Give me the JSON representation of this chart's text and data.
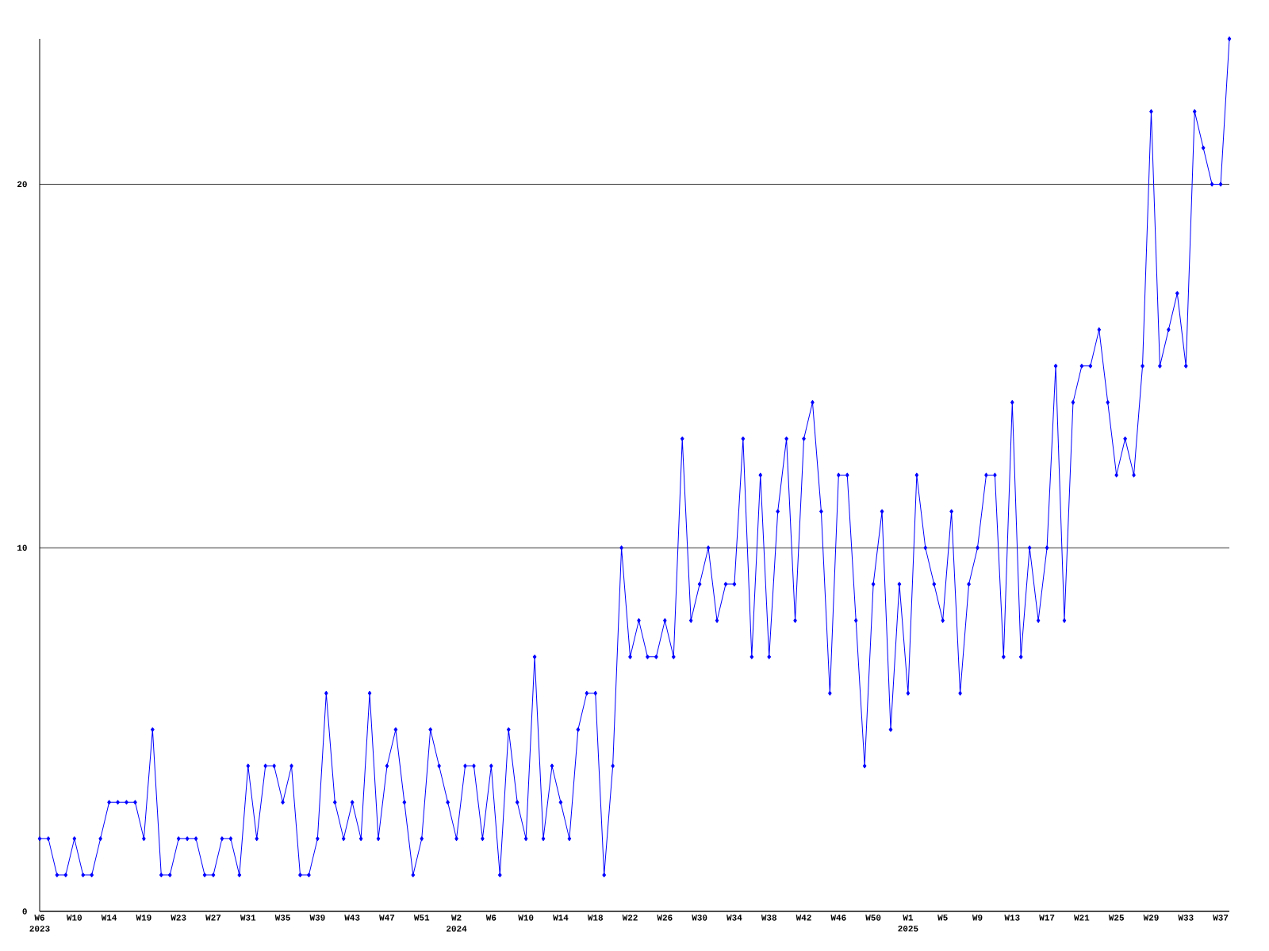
{
  "chart_data": {
    "type": "line",
    "categories": [
      "W6 2023",
      null,
      null,
      null,
      "W10",
      null,
      null,
      null,
      "W14",
      null,
      null,
      null,
      "W19",
      null,
      null,
      null,
      "W23",
      null,
      null,
      null,
      "W27",
      null,
      null,
      null,
      "W31",
      null,
      null,
      null,
      "W35",
      null,
      null,
      null,
      "W39",
      null,
      null,
      null,
      "W43",
      null,
      null,
      null,
      "W47",
      null,
      null,
      null,
      "W51",
      null,
      null,
      null,
      "W2 2024",
      null,
      null,
      null,
      "W6",
      null,
      null,
      null,
      "W10",
      null,
      null,
      null,
      "W14",
      null,
      null,
      null,
      "W18",
      null,
      null,
      null,
      "W22",
      null,
      null,
      null,
      "W26",
      null,
      null,
      null,
      "W30",
      null,
      null,
      null,
      "W34",
      null,
      null,
      null,
      "W38",
      null,
      null,
      null,
      "W42",
      null,
      null,
      null,
      "W46",
      null,
      null,
      null,
      "W50",
      null,
      null,
      null,
      "W1 2025",
      null,
      null,
      null,
      "W5",
      null,
      null,
      null,
      "W9",
      null,
      null,
      null,
      "W13",
      null,
      null,
      null,
      "W17",
      null,
      null,
      null,
      "W21",
      null,
      null,
      null,
      "W25",
      null,
      null,
      null,
      "W29",
      null,
      null,
      null,
      "W33",
      null,
      null,
      null,
      "W37",
      null
    ],
    "values": [
      2,
      2,
      1,
      1,
      2,
      1,
      1,
      2,
      3,
      3,
      3,
      3,
      2,
      5,
      1,
      1,
      2,
      2,
      2,
      1,
      1,
      2,
      2,
      1,
      4,
      2,
      4,
      4,
      3,
      4,
      1,
      1,
      2,
      6,
      3,
      2,
      3,
      2,
      6,
      2,
      4,
      5,
      3,
      1,
      2,
      5,
      4,
      3,
      2,
      4,
      4,
      2,
      4,
      1,
      5,
      3,
      2,
      7,
      2,
      4,
      3,
      2,
      5,
      6,
      6,
      1,
      4,
      10,
      7,
      8,
      7,
      7,
      8,
      7,
      13,
      8,
      9,
      10,
      8,
      9,
      9,
      13,
      7,
      12,
      7,
      11,
      13,
      8,
      13,
      14,
      11,
      6,
      12,
      12,
      8,
      4,
      9,
      11,
      5,
      9,
      6,
      12,
      10,
      9,
      8,
      11,
      6,
      9,
      10,
      12,
      12,
      7,
      14,
      7,
      10,
      8,
      10,
      15,
      8,
      14,
      15,
      15,
      16,
      14,
      12,
      13,
      12,
      15,
      22,
      15,
      16,
      17,
      15,
      22,
      21,
      20,
      20,
      24
    ],
    "color": "#0000ff",
    "ylim": [
      0,
      24
    ],
    "yticks": [
      0,
      10,
      20
    ],
    "grid": "y",
    "marker": "diamond",
    "line_style": "solid"
  }
}
